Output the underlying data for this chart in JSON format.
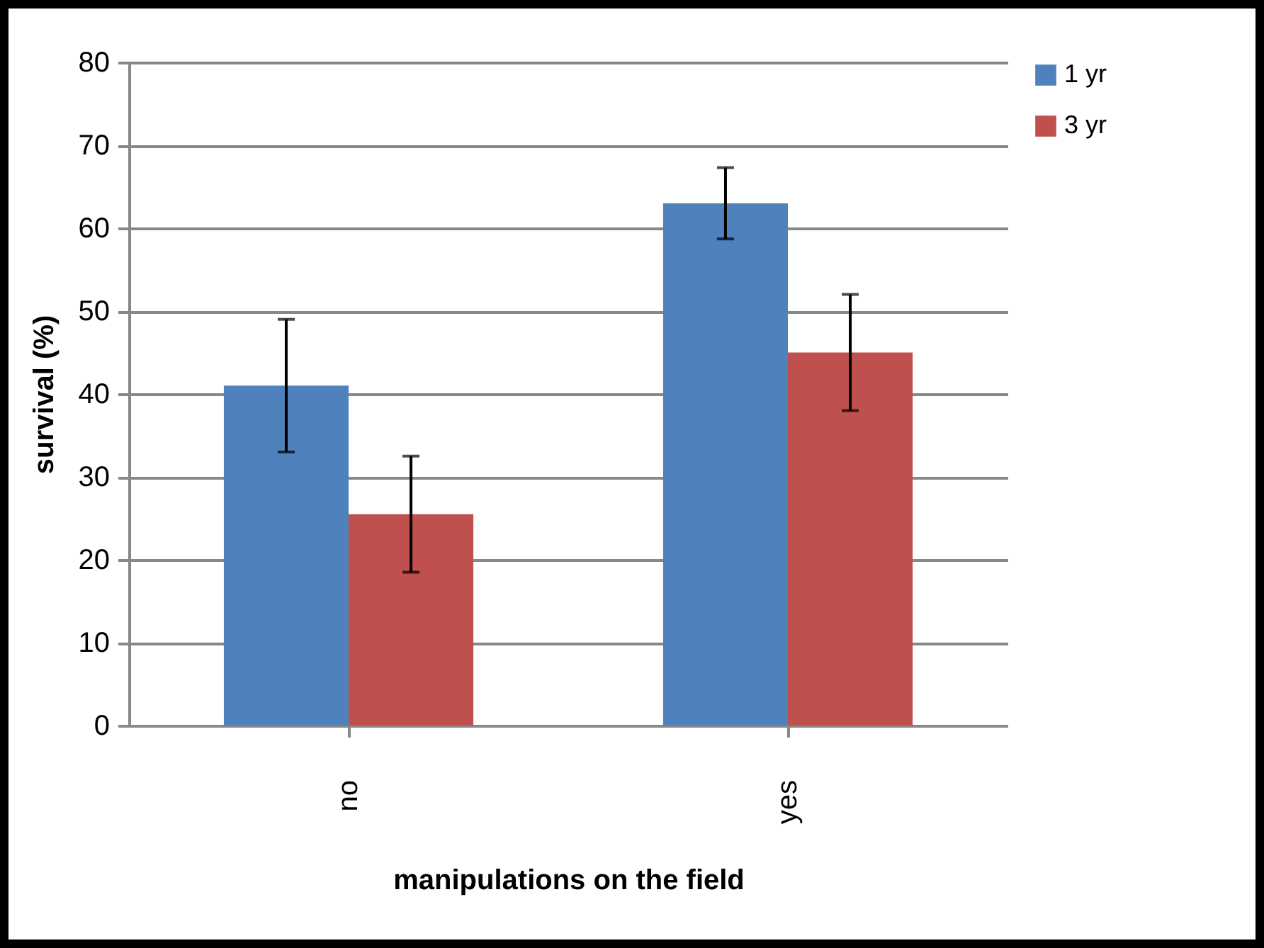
{
  "chart_data": {
    "type": "bar",
    "xlabel": "manipulations on the field",
    "ylabel": "survival (%)",
    "categories": [
      "no",
      "yes"
    ],
    "series": [
      {
        "name": "1 yr",
        "color": "#4f81bd",
        "values": [
          41,
          63
        ],
        "errors": [
          8,
          4.3
        ]
      },
      {
        "name": "3 yr",
        "color": "#c0504d",
        "values": [
          25.5,
          45
        ],
        "errors": [
          7,
          7
        ]
      }
    ],
    "ylim": [
      0,
      80
    ],
    "yticks": [
      0,
      10,
      20,
      30,
      40,
      50,
      60,
      70,
      80
    ],
    "grid": "y",
    "legend": "right"
  }
}
